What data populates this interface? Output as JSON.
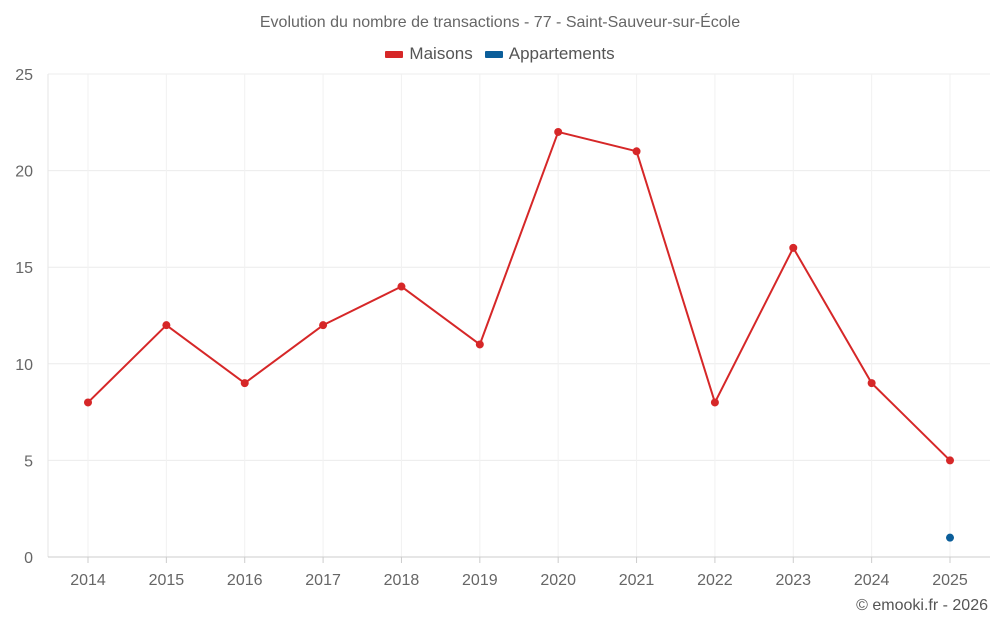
{
  "chart_data": {
    "type": "line",
    "title": "Evolution du nombre de transactions - 77 - Saint-Sauveur-sur-École",
    "xlabel": "",
    "ylabel": "",
    "categories": [
      "2014",
      "2015",
      "2016",
      "2017",
      "2018",
      "2019",
      "2020",
      "2021",
      "2022",
      "2023",
      "2024",
      "2025"
    ],
    "ylim": [
      0,
      25
    ],
    "yticks": [
      0,
      5,
      10,
      15,
      20,
      25
    ],
    "grid": true,
    "legend_position": "top-center",
    "series": [
      {
        "name": "Maisons",
        "color": "#d62728",
        "values": [
          8,
          12,
          9,
          12,
          14,
          11,
          22,
          21,
          8,
          16,
          9,
          5
        ]
      },
      {
        "name": "Appartements",
        "color": "#0b5e9a",
        "values": [
          null,
          null,
          null,
          null,
          null,
          null,
          null,
          null,
          null,
          null,
          null,
          1
        ]
      }
    ]
  },
  "credit": "© emooki.fr - 2026"
}
